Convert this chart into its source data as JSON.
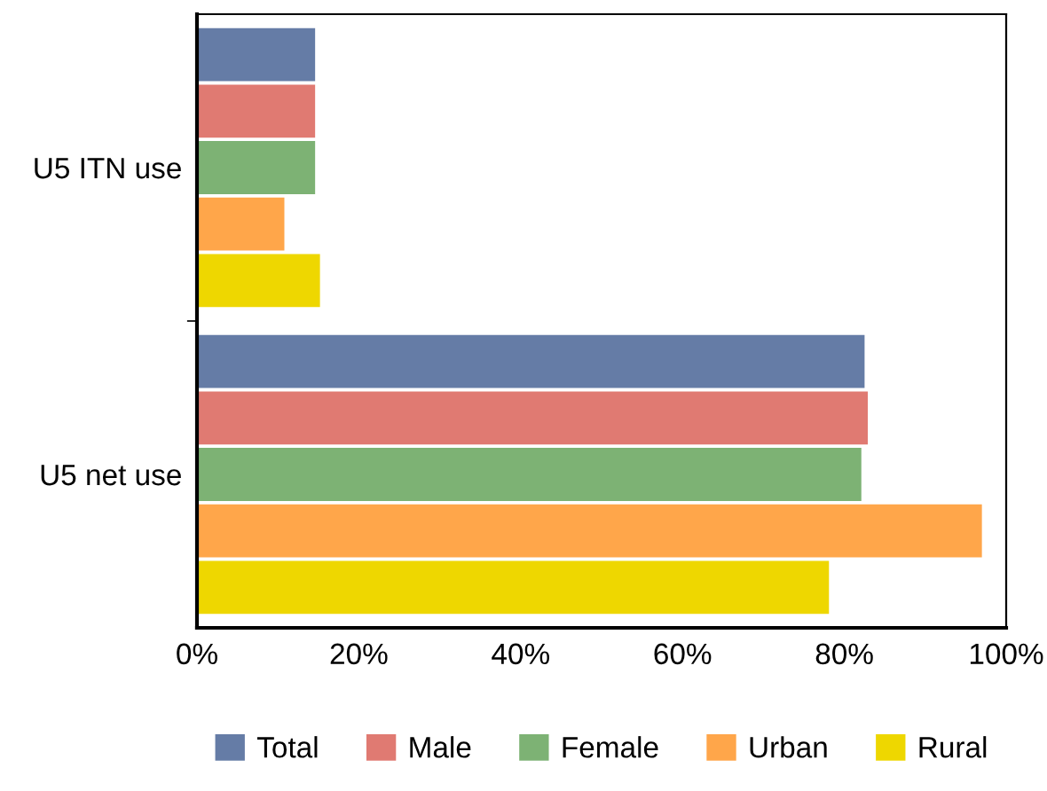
{
  "chart_data": {
    "type": "bar",
    "orientation": "horizontal",
    "categories": [
      "U5 ITN use",
      "U5 net use"
    ],
    "series": [
      {
        "name": "Total",
        "color": "#657ca6",
        "values": [
          14.6,
          82.5
        ]
      },
      {
        "name": "Male",
        "color": "#e07a72",
        "values": [
          14.6,
          82.9
        ]
      },
      {
        "name": "Female",
        "color": "#7db274",
        "values": [
          14.6,
          82.1
        ]
      },
      {
        "name": "Urban",
        "color": "#ffa64a",
        "values": [
          10.8,
          97.0
        ]
      },
      {
        "name": "Rural",
        "color": "#eed700",
        "values": [
          15.2,
          78.1
        ]
      }
    ],
    "xlim": [
      0,
      100
    ],
    "xticks": [
      {
        "value": 0,
        "label": "0%"
      },
      {
        "value": 20,
        "label": "20%"
      },
      {
        "value": 40,
        "label": "40%"
      },
      {
        "value": 60,
        "label": "60%"
      },
      {
        "value": 80,
        "label": "80%"
      },
      {
        "value": 100,
        "label": "100%"
      }
    ],
    "grid": false,
    "legend": "bottom"
  }
}
